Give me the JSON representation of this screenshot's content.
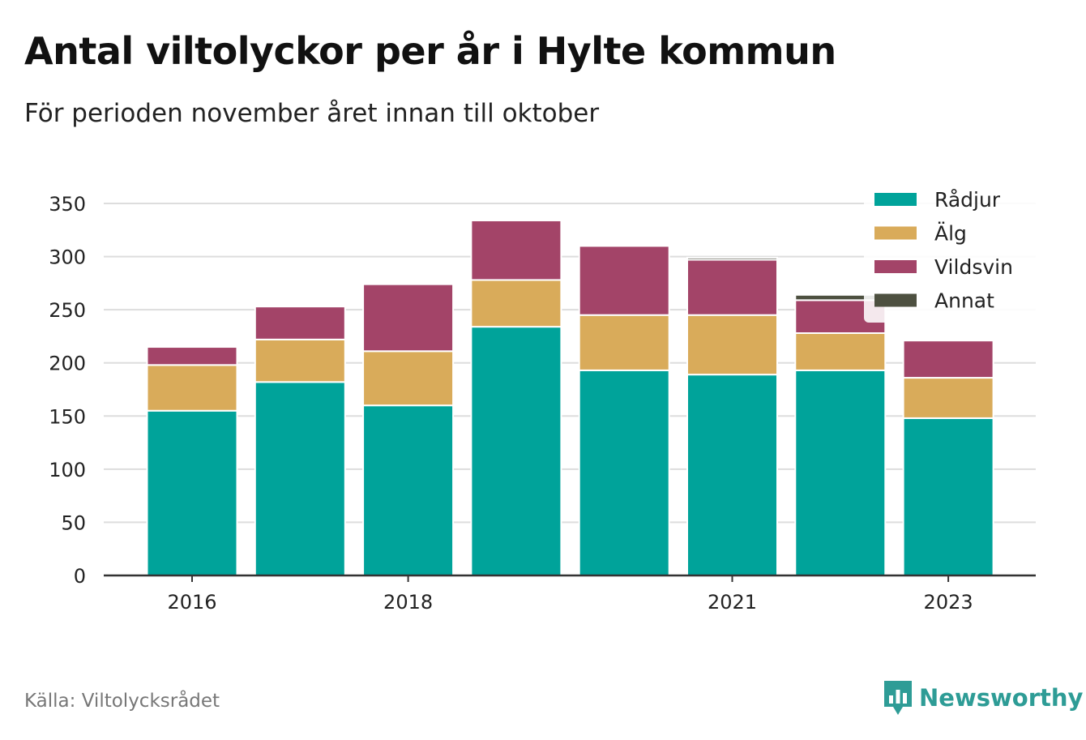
{
  "title": "Antal viltolyckor per år i Hylte kommun",
  "subtitle": "För perioden november året innan till oktober",
  "source": "Källa: Viltolycksrådet",
  "brand": "Newsworthy",
  "colors": {
    "Rådjur": "#00a39a",
    "Älg": "#d9ab5a",
    "Vildsvin": "#a34468",
    "Annat": "#4d5040",
    "grid": "#dddddd",
    "axis": "#333333",
    "brand": "#2e9c96"
  },
  "chart_data": {
    "type": "bar",
    "stacked": true,
    "categories": [
      "2016",
      "2017",
      "2018",
      "2019",
      "2020",
      "2021",
      "2022",
      "2023"
    ],
    "x_tick_labels": [
      "2016",
      "2018",
      "2021",
      "2023"
    ],
    "series": [
      {
        "name": "Rådjur",
        "values": [
          155,
          182,
          160,
          234,
          193,
          189,
          193,
          148
        ]
      },
      {
        "name": "Älg",
        "values": [
          43,
          40,
          51,
          44,
          52,
          56,
          35,
          38
        ]
      },
      {
        "name": "Vildsvin",
        "values": [
          17,
          31,
          63,
          56,
          65,
          52,
          31,
          35
        ]
      },
      {
        "name": "Annat",
        "values": [
          0,
          0,
          0,
          0,
          0,
          2,
          5,
          0
        ]
      }
    ],
    "ylim": [
      0,
      350
    ],
    "yticks": [
      0,
      50,
      100,
      150,
      200,
      250,
      300,
      350
    ],
    "grid": true,
    "legend": "top-right"
  }
}
